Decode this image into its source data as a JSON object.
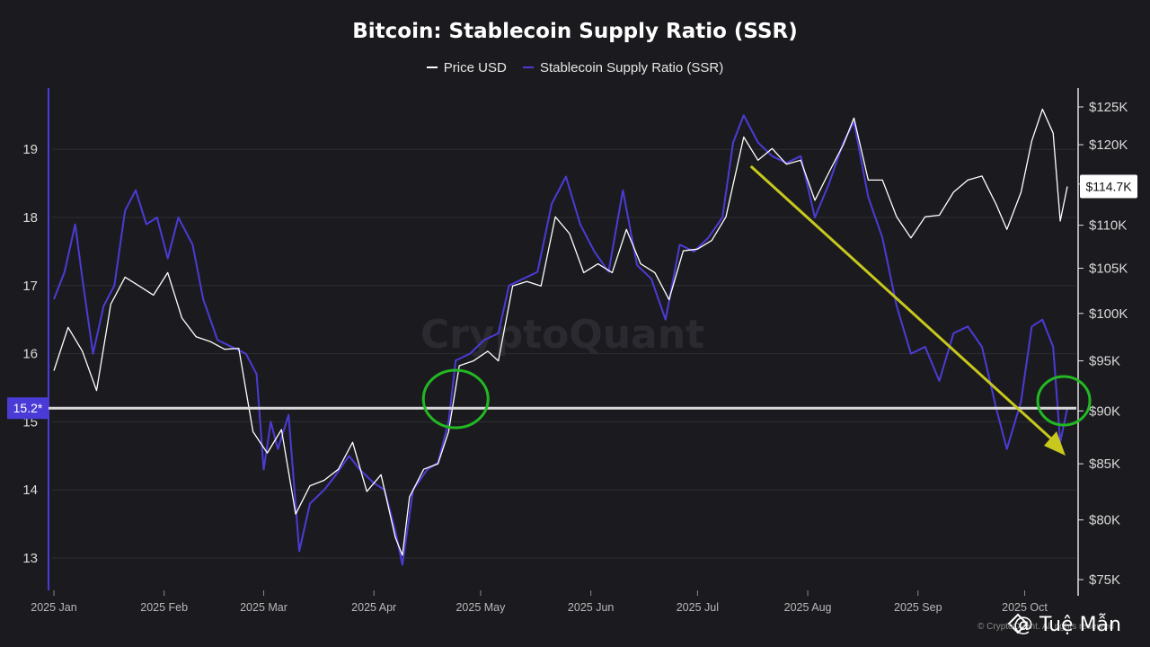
{
  "chart_data": {
    "type": "line",
    "title": "Bitcoin: Stablecoin Supply Ratio (SSR)",
    "legend": [
      "Price USD",
      "Stablecoin Supply Ratio (SSR)"
    ],
    "legend_position": "top-center",
    "colors": {
      "price": "#ffffff",
      "ssr": "#4b3bd6",
      "marker_line": "#d9d9d9",
      "arrow": "#c8c81e",
      "circle": "#22b822",
      "left_badge": "#4b3bd6"
    },
    "x_tick_labels": [
      "2025 Jan",
      "2025 Feb",
      "2025 Mar",
      "2025 Apr",
      "2025 May",
      "2025 Jun",
      "2025 Jul",
      "2025 Aug",
      "2025 Sep",
      "2025 Oct"
    ],
    "x_tick_dates": [
      "2025-01-01",
      "2025-02-01",
      "2025-03-01",
      "2025-04-01",
      "2025-05-01",
      "2025-06-01",
      "2025-07-01",
      "2025-08-01",
      "2025-09-01",
      "2025-10-01"
    ],
    "x_range": [
      "2025-01-01",
      "2025-10-13"
    ],
    "y_left": {
      "label": "",
      "ticks": [
        13,
        14,
        15,
        16,
        17,
        18,
        19
      ],
      "range": [
        12.6,
        19.9
      ]
    },
    "y_right": {
      "label": "",
      "tick_values": [
        75000,
        80000,
        85000,
        90000,
        95000,
        100000,
        105000,
        110000,
        115000,
        120000,
        125000
      ],
      "tick_labels": [
        "$75K",
        "$80K",
        "$85K",
        "$90K",
        "$95K",
        "$100K",
        "$105K",
        "$110K",
        "$115K",
        "$120K",
        "$125K"
      ]
    },
    "current_ssr_label": "15.2*",
    "current_ssr_value": 15.2,
    "current_price_label": "$114.7K",
    "current_price_value": 114700,
    "series": [
      {
        "name": "Price USD",
        "points": [
          [
            "2025-01-01",
            94000
          ],
          [
            "2025-01-05",
            98500
          ],
          [
            "2025-01-09",
            96000
          ],
          [
            "2025-01-13",
            92000
          ],
          [
            "2025-01-17",
            101000
          ],
          [
            "2025-01-21",
            104000
          ],
          [
            "2025-01-25",
            103000
          ],
          [
            "2025-01-29",
            102000
          ],
          [
            "2025-02-02",
            104500
          ],
          [
            "2025-02-06",
            99500
          ],
          [
            "2025-02-10",
            97500
          ],
          [
            "2025-02-14",
            97000
          ],
          [
            "2025-02-18",
            96200
          ],
          [
            "2025-02-22",
            96300
          ],
          [
            "2025-02-26",
            88000
          ],
          [
            "2025-03-02",
            86000
          ],
          [
            "2025-03-06",
            88200
          ],
          [
            "2025-03-10",
            80500
          ],
          [
            "2025-03-14",
            83000
          ],
          [
            "2025-03-18",
            83500
          ],
          [
            "2025-03-22",
            84500
          ],
          [
            "2025-03-26",
            87000
          ],
          [
            "2025-03-30",
            82500
          ],
          [
            "2025-04-03",
            84000
          ],
          [
            "2025-04-07",
            78500
          ],
          [
            "2025-04-09",
            77000
          ],
          [
            "2025-04-11",
            82000
          ],
          [
            "2025-04-15",
            84500
          ],
          [
            "2025-04-19",
            85000
          ],
          [
            "2025-04-22",
            88000
          ],
          [
            "2025-04-25",
            94500
          ],
          [
            "2025-04-29",
            95000
          ],
          [
            "2025-05-03",
            96000
          ],
          [
            "2025-05-06",
            95000
          ],
          [
            "2025-05-10",
            103000
          ],
          [
            "2025-05-14",
            103500
          ],
          [
            "2025-05-18",
            103000
          ],
          [
            "2025-05-22",
            111000
          ],
          [
            "2025-05-26",
            109000
          ],
          [
            "2025-05-30",
            104500
          ],
          [
            "2025-06-03",
            105500
          ],
          [
            "2025-06-07",
            104500
          ],
          [
            "2025-06-11",
            109500
          ],
          [
            "2025-06-15",
            105500
          ],
          [
            "2025-06-19",
            104500
          ],
          [
            "2025-06-23",
            101500
          ],
          [
            "2025-06-27",
            107000
          ],
          [
            "2025-07-01",
            107200
          ],
          [
            "2025-07-05",
            108200
          ],
          [
            "2025-07-09",
            111000
          ],
          [
            "2025-07-14",
            121000
          ],
          [
            "2025-07-18",
            118000
          ],
          [
            "2025-07-22",
            119500
          ],
          [
            "2025-07-26",
            117500
          ],
          [
            "2025-07-30",
            118000
          ],
          [
            "2025-08-03",
            113000
          ],
          [
            "2025-08-07",
            116500
          ],
          [
            "2025-08-11",
            120000
          ],
          [
            "2025-08-14",
            123500
          ],
          [
            "2025-08-18",
            115500
          ],
          [
            "2025-08-22",
            115500
          ],
          [
            "2025-08-26",
            111000
          ],
          [
            "2025-08-30",
            108500
          ],
          [
            "2025-09-03",
            111000
          ],
          [
            "2025-09-07",
            111200
          ],
          [
            "2025-09-11",
            114000
          ],
          [
            "2025-09-15",
            115500
          ],
          [
            "2025-09-19",
            116000
          ],
          [
            "2025-09-23",
            112500
          ],
          [
            "2025-09-26",
            109500
          ],
          [
            "2025-09-30",
            114000
          ],
          [
            "2025-10-03",
            120500
          ],
          [
            "2025-10-06",
            124700
          ],
          [
            "2025-10-09",
            121500
          ],
          [
            "2025-10-11",
            110500
          ],
          [
            "2025-10-13",
            114700
          ]
        ]
      },
      {
        "name": "Stablecoin Supply Ratio (SSR)",
        "points": [
          [
            "2025-01-01",
            16.8
          ],
          [
            "2025-01-04",
            17.2
          ],
          [
            "2025-01-07",
            17.9
          ],
          [
            "2025-01-09",
            17.1
          ],
          [
            "2025-01-12",
            16.0
          ],
          [
            "2025-01-15",
            16.7
          ],
          [
            "2025-01-18",
            17.0
          ],
          [
            "2025-01-21",
            18.1
          ],
          [
            "2025-01-24",
            18.4
          ],
          [
            "2025-01-27",
            17.9
          ],
          [
            "2025-01-30",
            18.0
          ],
          [
            "2025-02-02",
            17.4
          ],
          [
            "2025-02-05",
            18.0
          ],
          [
            "2025-02-09",
            17.6
          ],
          [
            "2025-02-12",
            16.8
          ],
          [
            "2025-02-16",
            16.2
          ],
          [
            "2025-02-20",
            16.1
          ],
          [
            "2025-02-24",
            16.0
          ],
          [
            "2025-02-27",
            15.7
          ],
          [
            "2025-03-01",
            14.3
          ],
          [
            "2025-03-03",
            15.0
          ],
          [
            "2025-03-05",
            14.6
          ],
          [
            "2025-03-08",
            15.1
          ],
          [
            "2025-03-11",
            13.1
          ],
          [
            "2025-03-14",
            13.8
          ],
          [
            "2025-03-18",
            14.0
          ],
          [
            "2025-03-21",
            14.2
          ],
          [
            "2025-03-25",
            14.5
          ],
          [
            "2025-03-28",
            14.3
          ],
          [
            "2025-04-01",
            14.1
          ],
          [
            "2025-04-04",
            14.0
          ],
          [
            "2025-04-07",
            13.4
          ],
          [
            "2025-04-09",
            12.9
          ],
          [
            "2025-04-12",
            14.0
          ],
          [
            "2025-04-16",
            14.3
          ],
          [
            "2025-04-19",
            14.4
          ],
          [
            "2025-04-22",
            15.0
          ],
          [
            "2025-04-24",
            15.9
          ],
          [
            "2025-04-28",
            16.0
          ],
          [
            "2025-05-02",
            16.2
          ],
          [
            "2025-05-06",
            16.3
          ],
          [
            "2025-05-09",
            17.0
          ],
          [
            "2025-05-13",
            17.1
          ],
          [
            "2025-05-17",
            17.2
          ],
          [
            "2025-05-21",
            18.2
          ],
          [
            "2025-05-25",
            18.6
          ],
          [
            "2025-05-29",
            17.9
          ],
          [
            "2025-06-02",
            17.5
          ],
          [
            "2025-06-06",
            17.2
          ],
          [
            "2025-06-10",
            18.4
          ],
          [
            "2025-06-14",
            17.3
          ],
          [
            "2025-06-18",
            17.1
          ],
          [
            "2025-06-22",
            16.5
          ],
          [
            "2025-06-26",
            17.6
          ],
          [
            "2025-06-30",
            17.5
          ],
          [
            "2025-07-04",
            17.7
          ],
          [
            "2025-07-08",
            18.0
          ],
          [
            "2025-07-11",
            19.1
          ],
          [
            "2025-07-14",
            19.5
          ],
          [
            "2025-07-18",
            19.1
          ],
          [
            "2025-07-22",
            18.9
          ],
          [
            "2025-07-26",
            18.8
          ],
          [
            "2025-07-30",
            18.9
          ],
          [
            "2025-08-03",
            18.0
          ],
          [
            "2025-08-07",
            18.5
          ],
          [
            "2025-08-11",
            19.1
          ],
          [
            "2025-08-14",
            19.4
          ],
          [
            "2025-08-18",
            18.3
          ],
          [
            "2025-08-22",
            17.7
          ],
          [
            "2025-08-26",
            16.7
          ],
          [
            "2025-08-30",
            16.0
          ],
          [
            "2025-09-03",
            16.1
          ],
          [
            "2025-09-07",
            15.6
          ],
          [
            "2025-09-11",
            16.3
          ],
          [
            "2025-09-15",
            16.4
          ],
          [
            "2025-09-19",
            16.1
          ],
          [
            "2025-09-23",
            15.2
          ],
          [
            "2025-09-26",
            14.6
          ],
          [
            "2025-09-30",
            15.3
          ],
          [
            "2025-10-03",
            16.4
          ],
          [
            "2025-10-06",
            16.5
          ],
          [
            "2025-10-09",
            16.1
          ],
          [
            "2025-10-11",
            14.7
          ],
          [
            "2025-10-13",
            15.2
          ]
        ]
      }
    ]
  },
  "footer": {
    "copyright": "© CryptoQuant. All rights reserved",
    "handle": "@ Tuệ Mẫn"
  }
}
